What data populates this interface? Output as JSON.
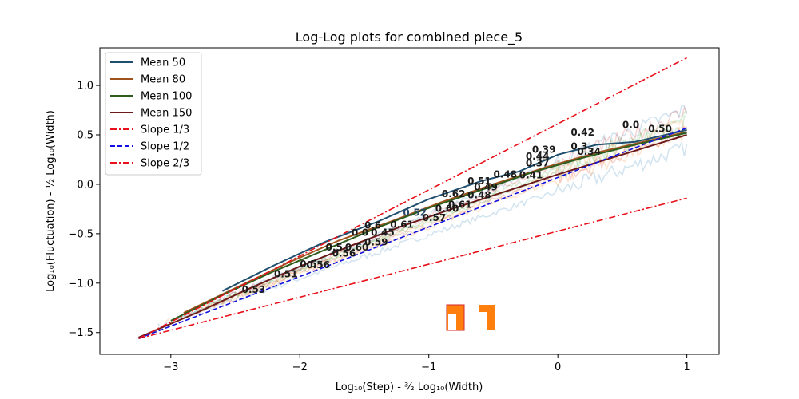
{
  "chart_data": {
    "type": "line",
    "title": "Log-Log plots for combined piece_5",
    "xlabel": "Log₁₀(Step) - ³⁄₂ Log₁₀(Width)",
    "ylabel": "Log₁₀(Fluctuation) - ½ Log₁₀(Width)",
    "xlim": [
      -3.55,
      1.25
    ],
    "ylim": [
      -1.72,
      1.38
    ],
    "xticks": [
      -3,
      -2,
      -1,
      0,
      1
    ],
    "yticks": [
      -1.5,
      -1.0,
      -0.5,
      0.0,
      0.5,
      1.0
    ],
    "xtick_labels": [
      "−3",
      "−2",
      "−1",
      "0",
      "1"
    ],
    "ytick_labels": [
      "−1.5",
      "−1.0",
      "−0.5",
      "0.0",
      "0.5",
      "1.0"
    ],
    "grid": false,
    "legend_position": "top-left",
    "series": [
      {
        "name": "Mean 50",
        "color": "#1f4e6e",
        "style": "solid",
        "x": [
          -2.6,
          -2.2,
          -1.8,
          -1.4,
          -1.0,
          -0.6,
          -0.3,
          0.0,
          0.3,
          0.6,
          1.0
        ],
        "y": [
          -1.08,
          -0.82,
          -0.58,
          -0.38,
          -0.15,
          0.03,
          0.13,
          0.3,
          0.4,
          0.43,
          0.55
        ]
      },
      {
        "name": "Mean 80",
        "color": "#a0521e",
        "style": "solid",
        "x": [
          -2.9,
          -2.5,
          -2.1,
          -1.7,
          -1.3,
          -0.9,
          -0.5,
          -0.1,
          0.3,
          0.7,
          1.0
        ],
        "y": [
          -1.3,
          -1.05,
          -0.8,
          -0.57,
          -0.38,
          -0.18,
          0.0,
          0.17,
          0.32,
          0.44,
          0.53
        ]
      },
      {
        "name": "Mean 100",
        "color": "#2e5e1e",
        "style": "solid",
        "x": [
          -3.0,
          -2.6,
          -2.2,
          -1.8,
          -1.4,
          -1.0,
          -0.6,
          -0.2,
          0.2,
          0.6,
          1.0
        ],
        "y": [
          -1.38,
          -1.12,
          -0.88,
          -0.66,
          -0.44,
          -0.24,
          -0.06,
          0.12,
          0.27,
          0.4,
          0.52
        ]
      },
      {
        "name": "Mean 150",
        "color": "#6b1a1a",
        "style": "solid",
        "x": [
          -3.25,
          -2.8,
          -2.4,
          -2.0,
          -1.6,
          -1.2,
          -0.8,
          -0.4,
          0.0,
          0.4,
          0.8,
          1.0
        ],
        "y": [
          -1.55,
          -1.3,
          -1.06,
          -0.83,
          -0.62,
          -0.42,
          -0.24,
          -0.07,
          0.1,
          0.26,
          0.42,
          0.5
        ]
      },
      {
        "name": "Slope 1/3",
        "color": "#e8101a",
        "style": "dashdot",
        "x": [
          -3.25,
          1.0
        ],
        "y": [
          -1.56,
          -0.14
        ]
      },
      {
        "name": "Slope 1/2",
        "color": "#1010e0",
        "style": "dashed",
        "x": [
          -3.25,
          1.0
        ],
        "y": [
          -1.56,
          0.57
        ]
      },
      {
        "name": "Slope 2/3",
        "color": "#e8101a",
        "style": "dashdot",
        "x": [
          -3.25,
          1.0
        ],
        "y": [
          -1.56,
          1.28
        ]
      }
    ],
    "annotations": [
      {
        "text": "0.53",
        "x": -2.45,
        "y": -1.1,
        "color": "#1a1a1a"
      },
      {
        "text": "0.51",
        "x": -2.2,
        "y": -0.94,
        "color": "#1a1a1a"
      },
      {
        "text": "0.56",
        "x": -1.95,
        "y": -0.85,
        "color": "#1a1a1a"
      },
      {
        "text": "0.5",
        "x": -2.0,
        "y": -0.84,
        "color": "#1a1a1a"
      },
      {
        "text": "0.56",
        "x": -1.75,
        "y": -0.73,
        "color": "#1a1a1a"
      },
      {
        "text": "0.5",
        "x": -1.8,
        "y": -0.67,
        "color": "#1a1a1a"
      },
      {
        "text": "0.60",
        "x": -1.65,
        "y": -0.67,
        "color": "#1a1a1a"
      },
      {
        "text": "0.59",
        "x": -1.5,
        "y": -0.62,
        "color": "#1a1a1a"
      },
      {
        "text": "0.0",
        "x": -1.6,
        "y": -0.52,
        "color": "#1a1a1a"
      },
      {
        "text": "0.45",
        "x": -1.45,
        "y": -0.52,
        "color": "#1a1a1a"
      },
      {
        "text": "0.6",
        "x": -1.5,
        "y": -0.45,
        "color": "#1a1a1a"
      },
      {
        "text": "0.61",
        "x": -1.3,
        "y": -0.44,
        "color": "#1a1a1a"
      },
      {
        "text": "0.52",
        "x": -1.2,
        "y": -0.32,
        "color": "#2a4a6a"
      },
      {
        "text": "0.57",
        "x": -1.05,
        "y": -0.37,
        "color": "#1a1a1a"
      },
      {
        "text": "0.60",
        "x": -0.95,
        "y": -0.28,
        "color": "#1a1a1a"
      },
      {
        "text": "0.61",
        "x": -0.85,
        "y": -0.24,
        "color": "#1a1a1a"
      },
      {
        "text": "0.62",
        "x": -0.9,
        "y": -0.13,
        "color": "#1a1a1a"
      },
      {
        "text": "0.48",
        "x": -0.7,
        "y": -0.14,
        "color": "#1a1a1a"
      },
      {
        "text": "0.49",
        "x": -0.65,
        "y": -0.06,
        "color": "#1a1a1a"
      },
      {
        "text": "0.51",
        "x": -0.7,
        "y": 0.0,
        "color": "#1a1a1a"
      },
      {
        "text": "0.48",
        "x": -0.5,
        "y": 0.07,
        "color": "#1a1a1a"
      },
      {
        "text": "0.41",
        "x": -0.3,
        "y": 0.06,
        "color": "#1a1a1a"
      },
      {
        "text": "0.37",
        "x": -0.25,
        "y": 0.18,
        "color": "#1a1a1a"
      },
      {
        "text": "0.44",
        "x": -0.25,
        "y": 0.25,
        "color": "#1a1a1a"
      },
      {
        "text": "0.39",
        "x": -0.2,
        "y": 0.32,
        "color": "#1a1a1a"
      },
      {
        "text": "0.42",
        "x": 0.1,
        "y": 0.49,
        "color": "#1a1a1a"
      },
      {
        "text": "0.34",
        "x": 0.15,
        "y": 0.3,
        "color": "#1a1a1a"
      },
      {
        "text": "0.3",
        "x": 0.1,
        "y": 0.35,
        "color": "#1a1a1a"
      },
      {
        "text": "0.0",
        "x": 0.5,
        "y": 0.57,
        "color": "#1a1a1a"
      },
      {
        "text": "0.50",
        "x": 0.7,
        "y": 0.53,
        "color": "#1a1a1a"
      }
    ]
  }
}
